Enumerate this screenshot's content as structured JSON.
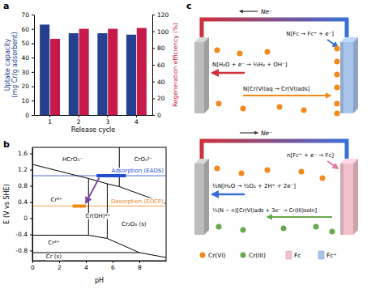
{
  "chart_data": [
    {
      "type": "bar",
      "title": "a",
      "categories": [
        1,
        2,
        3,
        4
      ],
      "x_label": "Release cycle",
      "y_label": "Uptake capacity (mg Cr/g adsorbent)",
      "y2_label": "Regeneration efficiency (%)",
      "series": [
        {
          "color": "#25408f",
          "values": [
            63,
            57,
            57,
            56
          ]
        },
        {
          "color": "#c8194b",
          "axis": "y2",
          "values": [
            91,
            103,
            103,
            104
          ]
        }
      ],
      "ylim": [
        0,
        70
      ],
      "yticks": [
        0,
        10,
        20,
        30,
        40,
        50,
        60,
        70
      ],
      "y2lim": [
        0,
        120
      ],
      "y2ticks": [
        0,
        20,
        40,
        60,
        80,
        100,
        120
      ]
    },
    {
      "type": "line",
      "title": "b",
      "x_label": "pH",
      "y_label": "E (V vs SHE)",
      "xlim": [
        0,
        10
      ],
      "xticks": [
        0,
        2,
        4,
        6,
        8
      ],
      "ylim": [
        -1.05,
        1.75
      ],
      "yticks": [
        1.6,
        1.2,
        0.8,
        0.4,
        0,
        -0.4,
        -0.8
      ],
      "series": [
        {
          "color": "#000000",
          "x": [
            0,
            4.2,
            5.6,
            6.5,
            10
          ],
          "values": [
            1.33,
            0.98,
            0.85,
            0.78,
            0.36
          ]
        },
        {
          "color": "#000000",
          "x": [
            6.5,
            6.5
          ],
          "values": [
            0.78,
            1.75
          ]
        },
        {
          "color": "#000000",
          "x": [
            4.2,
            4.2
          ],
          "values": [
            -0.42,
            0.98
          ]
        },
        {
          "color": "#000000",
          "x": [
            5.6,
            5.6
          ],
          "values": [
            -0.5,
            0.85
          ]
        },
        {
          "color": "#000000",
          "x": [
            0,
            4.2,
            5.6,
            8,
            10
          ],
          "values": [
            -0.42,
            -0.42,
            -0.5,
            -0.85,
            -0.97
          ]
        },
        {
          "color": "#000000",
          "x": [
            0,
            8
          ],
          "values": [
            -0.85,
            -0.85
          ]
        },
        {
          "name": "Adsorption (EADS)",
          "color": "#1f4fd0",
          "x": [
            4.8,
            7.0
          ],
          "values": [
            1.05,
            1.05
          ]
        },
        {
          "name": "Desorption (EOCP)",
          "color": "#f08a1c",
          "x": [
            3.0,
            4.0
          ],
          "values": [
            0.3,
            0.3
          ]
        },
        {
          "color": "#7b3fa8",
          "marker": "arrow",
          "x": [
            5.0,
            4.0
          ],
          "values": [
            1.0,
            0.38
          ]
        }
      ],
      "annotations": [
        "HCrO₄⁻",
        "CrO₄²⁻",
        "Cr³⁺",
        "Cr(OH)²⁺",
        "Cr₂O₃ (s)",
        "Cr²⁺",
        "Cr (s)"
      ]
    }
  ],
  "diagram": {
    "title": "c",
    "top": {
      "electron_flow": "Ne⁻",
      "reactions": [
        "N[Fc → Fc⁺ + e⁻]",
        "N[H₂O + e⁻ → ½H₂ + OH⁻]",
        "N[Cr(VI)aq → Cr(VI)ads]"
      ]
    },
    "bottom": {
      "electron_flow": "Ne⁻",
      "reactions": [
        "n[Fc⁺ + e⁻ → Fc]",
        "½N[H₂O → ½O₂ + 2H⁺ + 2e⁻]",
        "⅓(N − n)[Cr(VI)ads + 3e⁻ → Cr(III)soln]"
      ]
    },
    "legend": [
      {
        "label": "Cr(VI)",
        "color": "#f08a1c"
      },
      {
        "label": "Cr(III)",
        "color": "#6aa84f"
      },
      {
        "label": "Fc",
        "color": "#f2c2cc"
      },
      {
        "label": "Fc⁺",
        "color": "#a9c4ea"
      }
    ]
  }
}
